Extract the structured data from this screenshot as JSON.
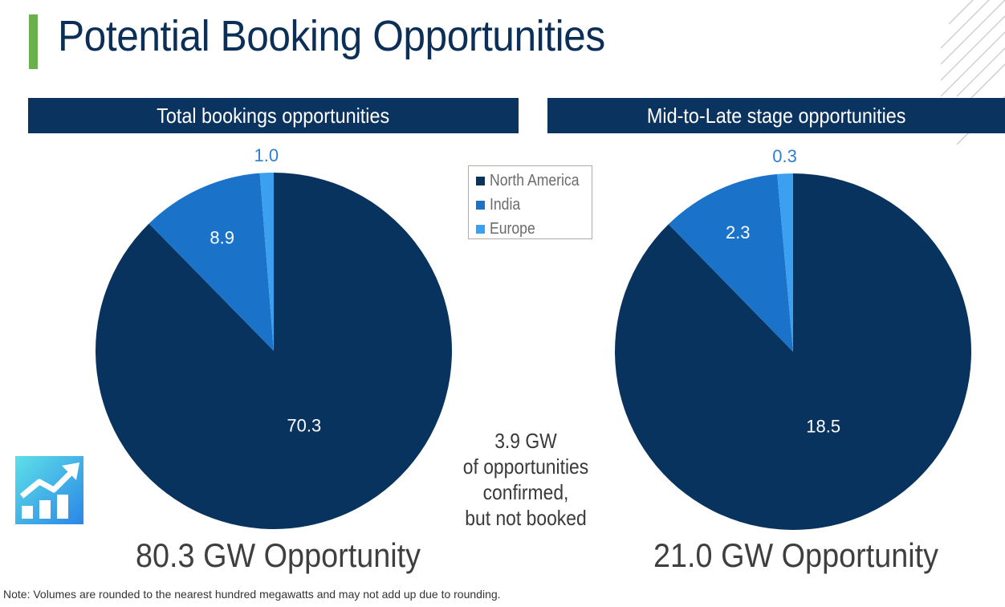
{
  "title": "Potential Booking Opportunities",
  "colors": {
    "navy": "#0b3360",
    "north_america": "#07335e",
    "india": "#1a73c9",
    "europe": "#3aa0ef",
    "accent_green": "#6ab04c"
  },
  "legend": {
    "items": [
      {
        "label": "North America",
        "color": "#07335e"
      },
      {
        "label": "India",
        "color": "#1a73c9"
      },
      {
        "label": "Europe",
        "color": "#3aa0ef"
      }
    ]
  },
  "callout": {
    "line1": "3.9 GW",
    "line2": "of opportunities",
    "line3": "confirmed,",
    "line4": "but not booked"
  },
  "footnote": "Note: Volumes are rounded to the nearest hundred megawatts and may not add up due to rounding.",
  "icon": "growth-chart-icon",
  "chart_data": [
    {
      "type": "pie",
      "title": "Total bookings opportunities",
      "categories": [
        "North America",
        "India",
        "Europe"
      ],
      "values": [
        70.3,
        8.9,
        1.0
      ],
      "value_labels": [
        "70.3",
        "8.9",
        "1.0"
      ],
      "total_label": "80.3 GW Opportunity",
      "legend": "top-right"
    },
    {
      "type": "pie",
      "title": "Mid-to-Late stage opportunities",
      "categories": [
        "North America",
        "India",
        "Europe"
      ],
      "values": [
        18.5,
        2.3,
        0.3
      ],
      "value_labels": [
        "18.5",
        "2.3",
        "0.3"
      ],
      "total_label": "21.0 GW Opportunity"
    }
  ]
}
